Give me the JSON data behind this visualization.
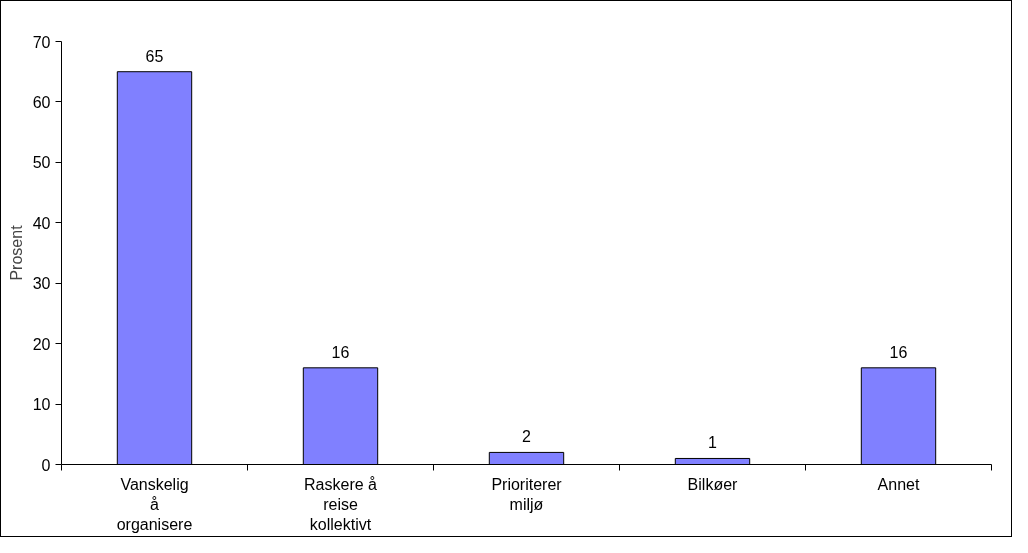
{
  "chart_data": {
    "type": "bar",
    "ylabel": "Prosent",
    "categories": [
      "Vanskelig\nå\norganisere",
      "Raskere å\nreise\nkollektivt",
      "Prioriterer\nmiljø",
      "Bilkøer",
      "Annet"
    ],
    "values": [
      65,
      16,
      2,
      1,
      16
    ],
    "color": "#8080ff",
    "ylim": [
      0,
      70
    ],
    "yticks": [
      0,
      10,
      20,
      30,
      40,
      50,
      60,
      70
    ],
    "grid": false,
    "data_labels": true
  }
}
